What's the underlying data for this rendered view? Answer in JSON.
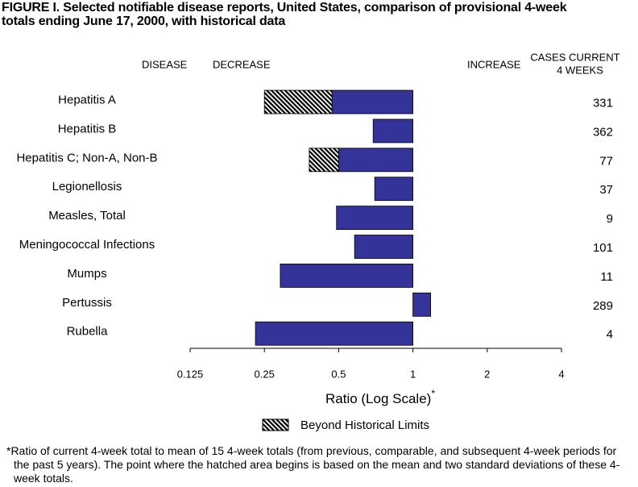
{
  "chart_data": {
    "type": "hbar",
    "title": "FIGURE I. Selected notifiable disease reports, United States, comparison of provisional 4-week totals ending June 17, 2000, with historical data",
    "header_disease": "DISEASE",
    "header_decrease": "DECREASE",
    "header_increase": "INCREASE",
    "header_cases": [
      "CASES CURRENT",
      "4 WEEKS"
    ],
    "categories": [
      "Hepatitis A",
      "Hepatitis B",
      "Hepatitis C; Non-A, Non-B",
      "Legionellosis",
      "Measles, Total",
      "Meningococcal Infections",
      "Mumps",
      "Pertussis",
      "Rubella"
    ],
    "values": [
      0.25,
      0.69,
      0.38,
      0.7,
      0.49,
      0.58,
      0.29,
      1.18,
      0.23
    ],
    "historical_limits": [
      0.47,
      null,
      0.5,
      null,
      null,
      null,
      null,
      null,
      null
    ],
    "cases_current": [
      331,
      362,
      77,
      37,
      9,
      101,
      11,
      289,
      4
    ],
    "color": "#333399",
    "base": 1,
    "log_scale": true,
    "xlim": [
      0.125,
      4
    ],
    "xticks": [
      0.125,
      0.25,
      0.5,
      1,
      2,
      4
    ],
    "xlabel": "Ratio (Log Scale)",
    "xlabel_mark": "*",
    "legend_label": "Beyond Historical Limits",
    "footnote": "*Ratio of current 4-week total to mean of 15 4-week totals (from previous, comparable, and subsequent 4-week periods for the past 5 years). The point where the hatched area begins is based on the mean and two standard deviations of these 4-week totals."
  }
}
